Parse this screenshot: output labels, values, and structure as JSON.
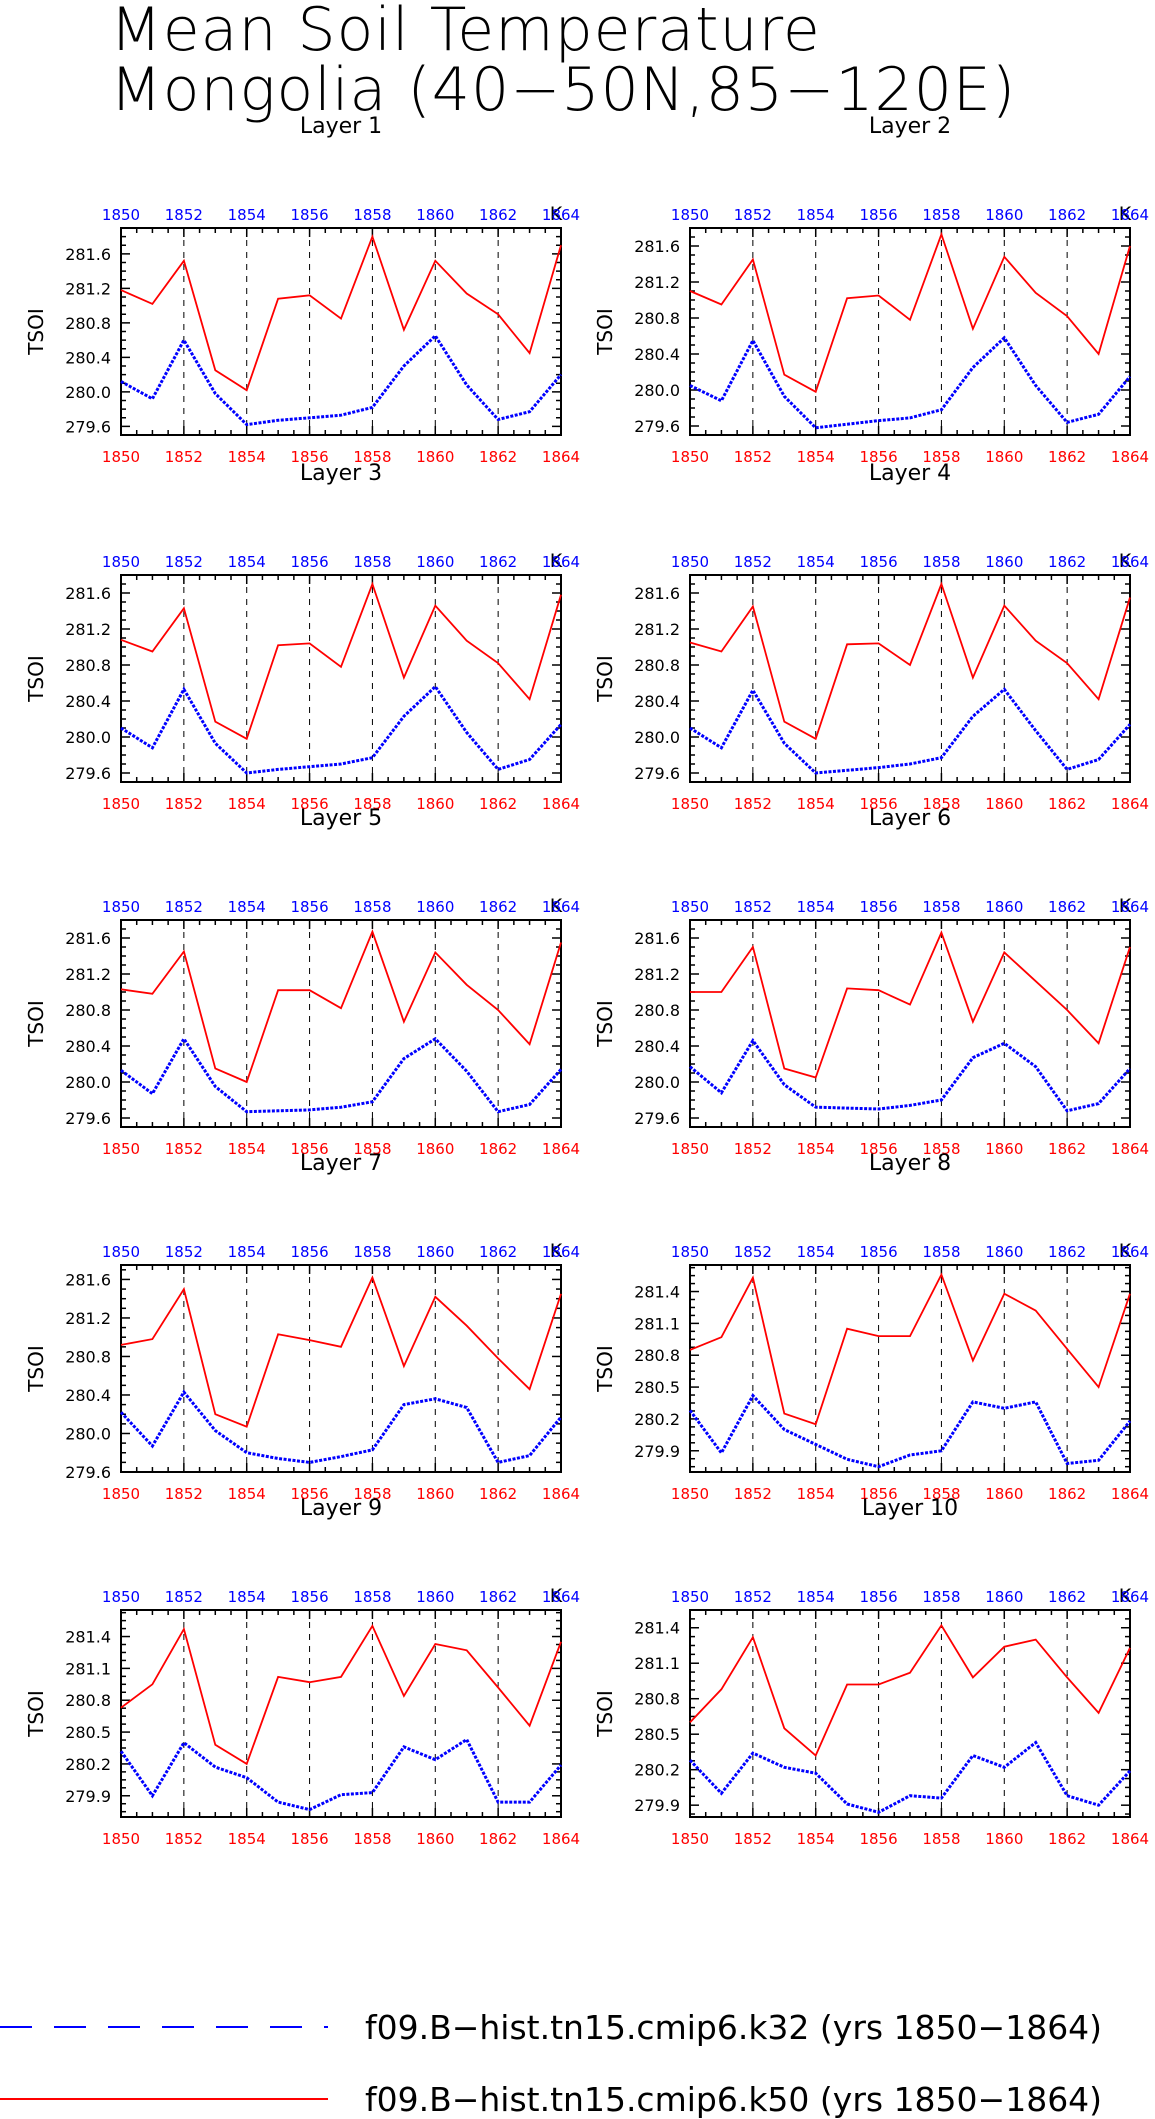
{
  "title": {
    "line1": "Mean Soil Temperature",
    "line2": "Mongolia (40−50N,85−120E)"
  },
  "colors": {
    "k32": "#0000ff",
    "k50": "#ff0000",
    "axis": "#000000",
    "grid": "#000000"
  },
  "legend": [
    {
      "label": "f09.B−hist.tn15.cmip6.k32 (yrs 1850−1864)",
      "color": "#0000ff",
      "style": "dashed"
    },
    {
      "label": "f09.B−hist.tn15.cmip6.k50 (yrs 1850−1864)",
      "color": "#ff0000",
      "style": "solid"
    }
  ],
  "chart_data": [
    {
      "type": "line",
      "title": "Layer 1",
      "ylabel": "TSOI",
      "units": "K",
      "x": [
        1850,
        1851,
        1852,
        1853,
        1854,
        1855,
        1856,
        1857,
        1858,
        1859,
        1860,
        1861,
        1862,
        1863,
        1864
      ],
      "xticks": [
        1850,
        1852,
        1854,
        1856,
        1858,
        1860,
        1862,
        1864
      ],
      "ylim": [
        279.5,
        281.9
      ],
      "yticks": [
        279.6,
        280.0,
        280.4,
        280.8,
        281.2,
        281.6
      ],
      "grid": "vertical dashed at x ticks",
      "series": [
        {
          "key": "k50",
          "values": [
            281.18,
            281.02,
            281.52,
            280.25,
            280.02,
            281.08,
            281.12,
            280.85,
            281.8,
            280.72,
            281.52,
            281.14,
            280.9,
            280.45,
            281.7
          ]
        },
        {
          "key": "k32",
          "values": [
            280.12,
            279.92,
            280.6,
            279.98,
            279.62,
            279.67,
            279.7,
            279.73,
            279.82,
            280.3,
            280.65,
            280.08,
            279.68,
            279.77,
            280.2
          ]
        }
      ]
    },
    {
      "type": "line",
      "title": "Layer 2",
      "ylabel": "TSOI",
      "units": "K",
      "x": [
        1850,
        1851,
        1852,
        1853,
        1854,
        1855,
        1856,
        1857,
        1858,
        1859,
        1860,
        1861,
        1862,
        1863,
        1864
      ],
      "xticks": [
        1850,
        1852,
        1854,
        1856,
        1858,
        1860,
        1862,
        1864
      ],
      "ylim": [
        279.5,
        281.8
      ],
      "yticks": [
        279.6,
        280.0,
        280.4,
        280.8,
        281.2,
        281.6
      ],
      "grid": "vertical dashed at x ticks",
      "series": [
        {
          "key": "k50",
          "values": [
            281.1,
            280.95,
            281.45,
            280.17,
            279.98,
            281.02,
            281.05,
            280.78,
            281.73,
            280.68,
            281.48,
            281.08,
            280.82,
            280.4,
            281.6
          ]
        },
        {
          "key": "k32",
          "values": [
            280.05,
            279.88,
            280.55,
            279.93,
            279.58,
            279.62,
            279.66,
            279.69,
            279.78,
            280.25,
            280.58,
            280.05,
            279.64,
            279.73,
            280.15
          ]
        }
      ]
    },
    {
      "type": "line",
      "title": "Layer 3",
      "ylabel": "TSOI",
      "units": "K",
      "x": [
        1850,
        1851,
        1852,
        1853,
        1854,
        1855,
        1856,
        1857,
        1858,
        1859,
        1860,
        1861,
        1862,
        1863,
        1864
      ],
      "xticks": [
        1850,
        1852,
        1854,
        1856,
        1858,
        1860,
        1862,
        1864
      ],
      "ylim": [
        279.5,
        281.8
      ],
      "yticks": [
        279.6,
        280.0,
        280.4,
        280.8,
        281.2,
        281.6
      ],
      "grid": "vertical dashed at x ticks",
      "series": [
        {
          "key": "k50",
          "values": [
            281.08,
            280.95,
            281.43,
            280.17,
            279.98,
            281.02,
            281.04,
            280.78,
            281.7,
            280.66,
            281.46,
            281.07,
            280.82,
            280.42,
            281.58
          ]
        },
        {
          "key": "k32",
          "values": [
            280.1,
            279.88,
            280.53,
            279.93,
            279.6,
            279.64,
            279.67,
            279.7,
            279.77,
            280.23,
            280.56,
            280.05,
            279.64,
            279.75,
            280.14
          ]
        }
      ]
    },
    {
      "type": "line",
      "title": "Layer 4",
      "ylabel": "TSOI",
      "units": "K",
      "x": [
        1850,
        1851,
        1852,
        1853,
        1854,
        1855,
        1856,
        1857,
        1858,
        1859,
        1860,
        1861,
        1862,
        1863,
        1864
      ],
      "xticks": [
        1850,
        1852,
        1854,
        1856,
        1858,
        1860,
        1862,
        1864
      ],
      "ylim": [
        279.5,
        281.8
      ],
      "yticks": [
        279.6,
        280.0,
        280.4,
        280.8,
        281.2,
        281.6
      ],
      "grid": "vertical dashed at x ticks",
      "series": [
        {
          "key": "k50",
          "values": [
            281.05,
            280.95,
            281.45,
            280.17,
            279.98,
            281.03,
            281.04,
            280.8,
            281.7,
            280.66,
            281.46,
            281.07,
            280.82,
            280.42,
            281.55
          ]
        },
        {
          "key": "k32",
          "values": [
            280.1,
            279.88,
            280.52,
            279.93,
            279.6,
            279.63,
            279.66,
            279.7,
            279.77,
            280.23,
            280.53,
            280.07,
            279.64,
            279.75,
            280.14
          ]
        }
      ]
    },
    {
      "type": "line",
      "title": "Layer 5",
      "ylabel": "TSOI",
      "units": "K",
      "x": [
        1850,
        1851,
        1852,
        1853,
        1854,
        1855,
        1856,
        1857,
        1858,
        1859,
        1860,
        1861,
        1862,
        1863,
        1864
      ],
      "xticks": [
        1850,
        1852,
        1854,
        1856,
        1858,
        1860,
        1862,
        1864
      ],
      "ylim": [
        279.5,
        281.8
      ],
      "yticks": [
        279.6,
        280.0,
        280.4,
        280.8,
        281.2,
        281.6
      ],
      "grid": "vertical dashed at x ticks",
      "series": [
        {
          "key": "k50",
          "values": [
            281.03,
            280.98,
            281.45,
            280.15,
            280.0,
            281.02,
            281.02,
            280.82,
            281.67,
            280.67,
            281.44,
            281.08,
            280.8,
            280.42,
            281.55
          ]
        },
        {
          "key": "k32",
          "values": [
            280.13,
            279.87,
            280.48,
            279.95,
            279.67,
            279.68,
            279.69,
            279.72,
            279.78,
            280.26,
            280.48,
            280.12,
            279.67,
            279.75,
            280.14
          ]
        }
      ]
    },
    {
      "type": "line",
      "title": "Layer 6",
      "ylabel": "TSOI",
      "units": "K",
      "x": [
        1850,
        1851,
        1852,
        1853,
        1854,
        1855,
        1856,
        1857,
        1858,
        1859,
        1860,
        1861,
        1862,
        1863,
        1864
      ],
      "xticks": [
        1850,
        1852,
        1854,
        1856,
        1858,
        1860,
        1862,
        1864
      ],
      "ylim": [
        279.5,
        281.8
      ],
      "yticks": [
        279.6,
        280.0,
        280.4,
        280.8,
        281.2,
        281.6
      ],
      "grid": "vertical dashed at x ticks",
      "series": [
        {
          "key": "k50",
          "values": [
            281.0,
            281.0,
            281.5,
            280.15,
            280.05,
            281.04,
            281.02,
            280.86,
            281.66,
            280.67,
            281.44,
            281.12,
            280.8,
            280.43,
            281.5
          ]
        },
        {
          "key": "k32",
          "values": [
            280.17,
            279.88,
            280.46,
            279.97,
            279.72,
            279.71,
            279.7,
            279.74,
            279.8,
            280.27,
            280.43,
            280.17,
            279.68,
            279.76,
            280.15
          ]
        }
      ]
    },
    {
      "type": "line",
      "title": "Layer 7",
      "ylabel": "TSOI",
      "units": "K",
      "x": [
        1850,
        1851,
        1852,
        1853,
        1854,
        1855,
        1856,
        1857,
        1858,
        1859,
        1860,
        1861,
        1862,
        1863,
        1864
      ],
      "xticks": [
        1850,
        1852,
        1854,
        1856,
        1858,
        1860,
        1862,
        1864
      ],
      "ylim": [
        279.6,
        281.75
      ],
      "yticks": [
        279.6,
        280.0,
        280.4,
        280.8,
        281.2,
        281.6
      ],
      "grid": "vertical dashed at x ticks",
      "series": [
        {
          "key": "k50",
          "values": [
            280.92,
            280.98,
            281.5,
            280.2,
            280.07,
            281.03,
            280.97,
            280.9,
            281.62,
            280.7,
            281.42,
            281.12,
            280.78,
            280.46,
            281.45
          ]
        },
        {
          "key": "k32",
          "values": [
            280.22,
            279.87,
            280.43,
            280.03,
            279.8,
            279.74,
            279.7,
            279.76,
            279.83,
            280.3,
            280.36,
            280.27,
            279.7,
            279.77,
            280.17
          ]
        }
      ]
    },
    {
      "type": "line",
      "title": "Layer 8",
      "ylabel": "TSOI",
      "units": "K",
      "x": [
        1850,
        1851,
        1852,
        1853,
        1854,
        1855,
        1856,
        1857,
        1858,
        1859,
        1860,
        1861,
        1862,
        1863,
        1864
      ],
      "xticks": [
        1850,
        1852,
        1854,
        1856,
        1858,
        1860,
        1862,
        1864
      ],
      "ylim": [
        279.7,
        281.65
      ],
      "yticks": [
        279.9,
        280.2,
        280.5,
        280.8,
        281.1,
        281.4
      ],
      "grid": "vertical dashed at x ticks",
      "series": [
        {
          "key": "k50",
          "values": [
            280.85,
            280.97,
            281.53,
            280.25,
            280.15,
            281.05,
            280.98,
            280.98,
            281.56,
            280.75,
            281.38,
            281.22,
            280.86,
            280.5,
            281.38
          ]
        },
        {
          "key": "k32",
          "values": [
            280.28,
            279.88,
            280.42,
            280.1,
            279.96,
            279.82,
            279.75,
            279.86,
            279.9,
            280.36,
            280.3,
            280.36,
            279.78,
            279.81,
            280.18
          ]
        }
      ]
    },
    {
      "type": "line",
      "title": "Layer 9",
      "ylabel": "TSOI",
      "units": "K",
      "x": [
        1850,
        1851,
        1852,
        1853,
        1854,
        1855,
        1856,
        1857,
        1858,
        1859,
        1860,
        1861,
        1862,
        1863,
        1864
      ],
      "xticks": [
        1850,
        1852,
        1854,
        1856,
        1858,
        1860,
        1862,
        1864
      ],
      "ylim": [
        279.7,
        281.65
      ],
      "yticks": [
        279.9,
        280.2,
        280.5,
        280.8,
        281.1,
        281.4
      ],
      "grid": "vertical dashed at x ticks",
      "series": [
        {
          "key": "k50",
          "values": [
            280.73,
            280.95,
            281.47,
            280.38,
            280.2,
            281.02,
            280.97,
            281.02,
            281.5,
            280.84,
            281.33,
            281.27,
            280.92,
            280.56,
            281.35
          ]
        },
        {
          "key": "k32",
          "values": [
            280.32,
            279.9,
            280.4,
            280.17,
            280.07,
            279.84,
            279.77,
            279.91,
            279.93,
            280.36,
            280.24,
            280.43,
            279.84,
            279.84,
            280.19
          ]
        }
      ]
    },
    {
      "type": "line",
      "title": "Layer 10",
      "ylabel": "TSOI",
      "units": "K",
      "x": [
        1850,
        1851,
        1852,
        1853,
        1854,
        1855,
        1856,
        1857,
        1858,
        1859,
        1860,
        1861,
        1862,
        1863,
        1864
      ],
      "xticks": [
        1850,
        1852,
        1854,
        1856,
        1858,
        1860,
        1862,
        1864
      ],
      "ylim": [
        279.8,
        281.55
      ],
      "yticks": [
        279.9,
        280.2,
        280.5,
        280.8,
        281.1,
        281.4
      ],
      "grid": "vertical dashed at x ticks",
      "series": [
        {
          "key": "k50",
          "values": [
            280.6,
            280.88,
            281.32,
            280.55,
            280.32,
            280.92,
            280.92,
            281.02,
            281.42,
            280.98,
            281.24,
            281.3,
            280.98,
            280.68,
            281.23
          ]
        },
        {
          "key": "k32",
          "values": [
            280.28,
            280.0,
            280.34,
            280.22,
            280.17,
            279.91,
            279.84,
            279.98,
            279.96,
            280.32,
            280.22,
            280.43,
            279.98,
            279.9,
            280.19
          ]
        }
      ]
    }
  ]
}
